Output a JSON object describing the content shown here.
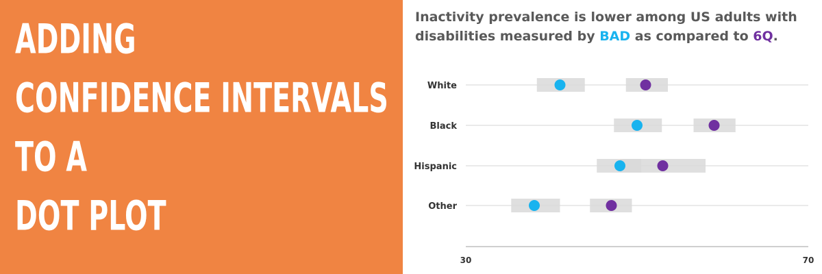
{
  "headline": {
    "lines": [
      "ADDING",
      "CONFIDENCE INTERVALS",
      "TO A",
      "DOT PLOT"
    ],
    "background": "#f08442",
    "text_color": "#ffffff"
  },
  "chart_data": {
    "type": "scatter",
    "title": {
      "part1": "Inactivity prevalence is lower among US adults with disabilities measured by ",
      "bad": "BAD",
      "part2": " as compared to ",
      "sixq": "6Q",
      "part3": "."
    },
    "categories": [
      "White",
      "Black",
      "Hispanic",
      "Other"
    ],
    "xlim": [
      30,
      70
    ],
    "xticks": [
      "30",
      "70"
    ],
    "series": [
      {
        "name": "BAD",
        "color": "#18b3ef",
        "values": [
          41.0,
          50.0,
          48.0,
          38.0
        ],
        "ci_low": [
          38.3,
          47.3,
          45.3,
          35.3
        ],
        "ci_high": [
          43.9,
          52.9,
          50.5,
          41.0
        ]
      },
      {
        "name": "6Q",
        "color": "#7030a0",
        "values": [
          51.0,
          59.0,
          53.0,
          47.0
        ],
        "ci_low": [
          48.7,
          56.6,
          48.0,
          44.5
        ],
        "ci_high": [
          53.6,
          61.5,
          58.0,
          49.4
        ]
      }
    ],
    "ci_color": "#d9d9d9",
    "grid": true
  }
}
